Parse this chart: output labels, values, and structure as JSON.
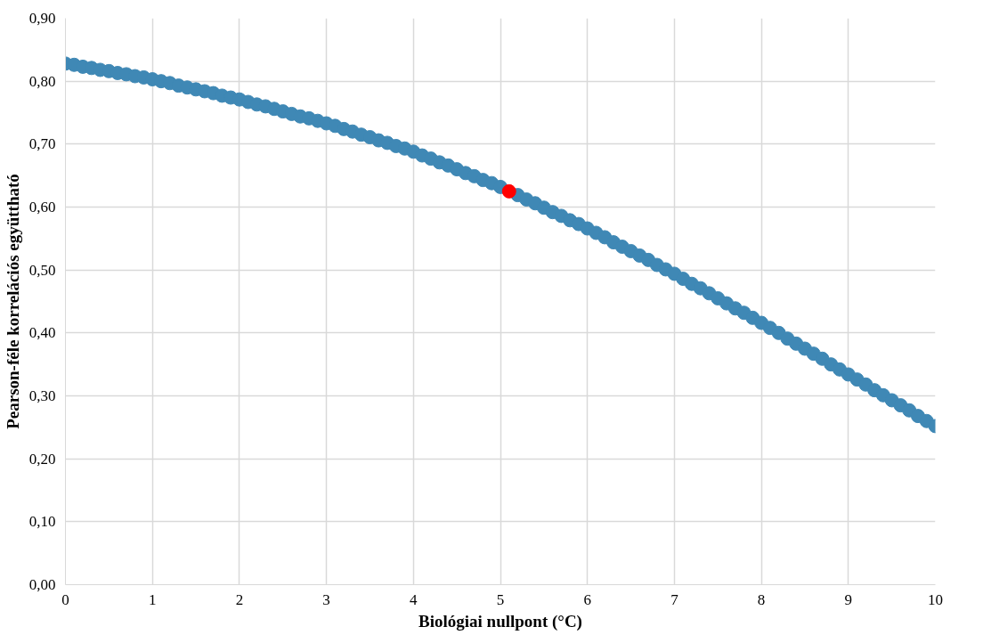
{
  "chart_data": {
    "type": "scatter",
    "xlabel": "Biológiai nullpont (°C)",
    "ylabel": "Pearson-féle korrelációs együttható",
    "marker": "circle",
    "grid": true,
    "xlim": [
      0,
      10
    ],
    "xticks": [
      0,
      1,
      2,
      3,
      4,
      5,
      6,
      7,
      8,
      9,
      10
    ],
    "ylim": [
      0,
      0.9
    ],
    "yticks": [
      {
        "value": 0,
        "label": "0,00"
      },
      {
        "value": 0.1,
        "label": "0,10"
      },
      {
        "value": 0.2,
        "label": "0,20"
      },
      {
        "value": 0.3,
        "label": "0,30"
      },
      {
        "value": 0.4,
        "label": "0,40"
      },
      {
        "value": 0.5,
        "label": "0,50"
      },
      {
        "value": 0.6,
        "label": "0,60"
      },
      {
        "value": 0.7,
        "label": "0,70"
      },
      {
        "value": 0.8,
        "label": "0,80"
      },
      {
        "value": 0.9,
        "label": "0,90"
      }
    ],
    "series": [
      {
        "color": "#3f88b5",
        "x": [
          0,
          0.1,
          0.2,
          0.3,
          0.4,
          0.5,
          0.6,
          0.7,
          0.8,
          0.9,
          1,
          1.1,
          1.2,
          1.3,
          1.4,
          1.5,
          1.6,
          1.7,
          1.8,
          1.9,
          2,
          2.1,
          2.2,
          2.3,
          2.4,
          2.5,
          2.6,
          2.7,
          2.8,
          2.9,
          3,
          3.1,
          3.2,
          3.3,
          3.4,
          3.5,
          3.6,
          3.7,
          3.8,
          3.9,
          4,
          4.1,
          4.2,
          4.3,
          4.4,
          4.5,
          4.6,
          4.7,
          4.8,
          4.9,
          5,
          5.2,
          5.3,
          5.4,
          5.5,
          5.6,
          5.7,
          5.8,
          5.9,
          6,
          6.1,
          6.2,
          6.3,
          6.4,
          6.5,
          6.6,
          6.7,
          6.8,
          6.9,
          7,
          7.1,
          7.2,
          7.3,
          7.4,
          7.5,
          7.6,
          7.7,
          7.8,
          7.9,
          8,
          8.1,
          8.2,
          8.3,
          8.4,
          8.5,
          8.6,
          8.7,
          8.8,
          8.9,
          9,
          9.1,
          9.2,
          9.3,
          9.4,
          9.5,
          9.6,
          9.7,
          9.8,
          9.9,
          10
        ],
        "values": [
          0.828,
          0.826,
          0.823,
          0.821,
          0.818,
          0.816,
          0.813,
          0.811,
          0.808,
          0.806,
          0.803,
          0.8,
          0.797,
          0.793,
          0.79,
          0.787,
          0.784,
          0.781,
          0.777,
          0.774,
          0.771,
          0.767,
          0.763,
          0.76,
          0.756,
          0.752,
          0.748,
          0.744,
          0.741,
          0.737,
          0.733,
          0.729,
          0.724,
          0.72,
          0.715,
          0.711,
          0.706,
          0.702,
          0.697,
          0.693,
          0.688,
          0.682,
          0.677,
          0.671,
          0.666,
          0.66,
          0.654,
          0.649,
          0.643,
          0.638,
          0.632,
          0.619,
          0.612,
          0.606,
          0.599,
          0.592,
          0.586,
          0.579,
          0.573,
          0.566,
          0.559,
          0.552,
          0.544,
          0.537,
          0.53,
          0.523,
          0.516,
          0.508,
          0.501,
          0.494,
          0.486,
          0.478,
          0.471,
          0.463,
          0.455,
          0.447,
          0.439,
          0.432,
          0.424,
          0.416,
          0.408,
          0.4,
          0.391,
          0.383,
          0.375,
          0.367,
          0.359,
          0.35,
          0.342,
          0.334,
          0.326,
          0.318,
          0.309,
          0.301,
          0.293,
          0.285,
          0.277,
          0.268,
          0.26,
          0.252
        ]
      },
      {
        "color": "#ff0000",
        "x": [
          5.1
        ],
        "values": [
          0.625
        ]
      }
    ]
  }
}
